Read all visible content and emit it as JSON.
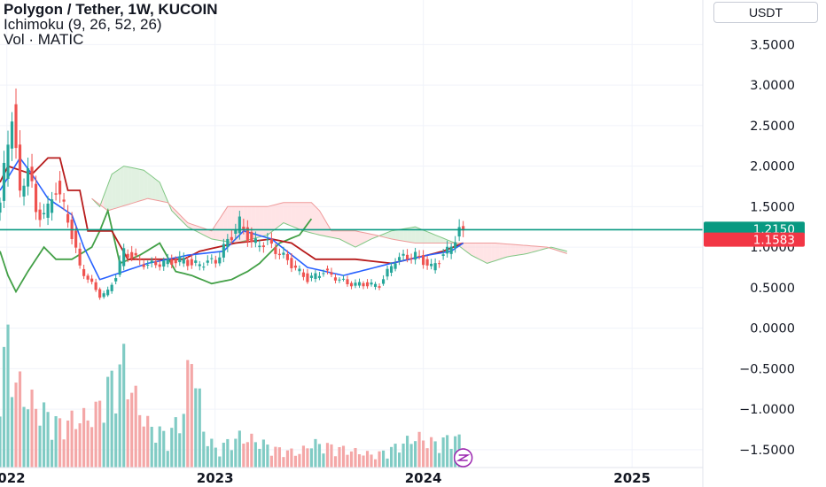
{
  "header": {
    "title": "Polygon / Tether, 1W, KUCOIN",
    "indicator": "Ichimoku (9, 26, 52, 26)",
    "volume_label": "Vol · MATIC",
    "currency": "USDT"
  },
  "colors": {
    "up": "#26a69a",
    "down": "#ef5350",
    "conversion": "#2962ff",
    "base": "#b71c1c",
    "lagging": "#43a047",
    "leading_a": "#81c784",
    "leading_b": "#ef9a9a",
    "cloud_bull": "#c8e6c9",
    "cloud_bear": "#ffcdd2",
    "vol_up": "#80cbc4",
    "vol_down": "#f4a7a7"
  },
  "chart_data": {
    "type": "candlestick",
    "y_axis": {
      "ticks": [
        3.5,
        3.0,
        2.5,
        2.0,
        1.5,
        1.0,
        0.5,
        0.0,
        -0.5,
        -1.0,
        -1.5
      ],
      "tick_labels": [
        "3.5000",
        "3.0000",
        "2.5000",
        "2.0000",
        "1.5000",
        "1.0000",
        "0.5000",
        "0.0000",
        "−0.5000",
        "−1.0000",
        "−1.5000"
      ],
      "range": [
        -1.72,
        4.05
      ]
    },
    "x_axis": {
      "ticks": [
        "2022-01-01",
        "2023-01-01",
        "2024-01-01",
        "2025-01-01"
      ],
      "tick_labels": [
        "2022",
        "2023",
        "2024",
        "2025"
      ],
      "range": [
        "2021-12-20",
        "2025-05-05"
      ]
    },
    "price_labels": [
      {
        "value": 1.215,
        "label": "1.2150",
        "color": "#089981"
      },
      {
        "value": 1.1583,
        "label": "1.1583",
        "color": "#f23645"
      }
    ],
    "anchors": {
      "close": [
        [
          "2021-12-20",
          1.55
        ],
        [
          "2022-01-03",
          2.3
        ],
        [
          "2022-01-10",
          2.7
        ],
        [
          "2022-01-24",
          1.62
        ],
        [
          "2022-02-07",
          2.05
        ],
        [
          "2022-02-21",
          1.4
        ],
        [
          "2022-03-14",
          1.45
        ],
        [
          "2022-03-28",
          1.75
        ],
        [
          "2022-04-18",
          1.35
        ],
        [
          "2022-05-09",
          0.75
        ],
        [
          "2022-06-13",
          0.4
        ],
        [
          "2022-06-27",
          0.45
        ],
        [
          "2022-07-11",
          0.65
        ],
        [
          "2022-07-25",
          0.95
        ],
        [
          "2022-08-15",
          0.85
        ],
        [
          "2022-09-05",
          0.78
        ],
        [
          "2022-10-17",
          0.82
        ],
        [
          "2022-11-07",
          0.85
        ],
        [
          "2022-11-21",
          0.78
        ],
        [
          "2023-01-02",
          0.83
        ],
        [
          "2023-01-30",
          1.15
        ],
        [
          "2023-02-13",
          1.3
        ],
        [
          "2023-03-06",
          1.05
        ],
        [
          "2023-04-03",
          1.05
        ],
        [
          "2023-05-01",
          0.88
        ],
        [
          "2023-06-12",
          0.6
        ],
        [
          "2023-07-10",
          0.7
        ],
        [
          "2023-08-21",
          0.55
        ],
        [
          "2023-10-16",
          0.53
        ],
        [
          "2023-11-13",
          0.85
        ],
        [
          "2023-12-18",
          0.9
        ],
        [
          "2024-01-15",
          0.75
        ],
        [
          "2024-02-12",
          0.95
        ],
        [
          "2024-03-04",
          1.2
        ],
        [
          "2024-03-11",
          1.16
        ]
      ],
      "conversion": [
        [
          "2021-12-20",
          1.7
        ],
        [
          "2022-01-24",
          2.1
        ],
        [
          "2022-02-14",
          1.9
        ],
        [
          "2022-03-14",
          1.6
        ],
        [
          "2022-04-25",
          1.4
        ],
        [
          "2022-05-16",
          1.0
        ],
        [
          "2022-06-13",
          0.6
        ],
        [
          "2022-07-25",
          0.7
        ],
        [
          "2022-09-05",
          0.8
        ],
        [
          "2022-11-14",
          0.9
        ],
        [
          "2023-01-16",
          0.95
        ],
        [
          "2023-02-20",
          1.2
        ],
        [
          "2023-04-10",
          1.1
        ],
        [
          "2023-06-12",
          0.75
        ],
        [
          "2023-08-14",
          0.65
        ],
        [
          "2023-11-06",
          0.8
        ],
        [
          "2024-01-08",
          0.9
        ],
        [
          "2024-02-19",
          0.95
        ],
        [
          "2024-03-11",
          1.05
        ]
      ],
      "base": [
        [
          "2021-12-20",
          1.8
        ],
        [
          "2022-01-03",
          2.0
        ],
        [
          "2022-02-14",
          1.9
        ],
        [
          "2022-03-14",
          2.1
        ],
        [
          "2022-04-04",
          2.1
        ],
        [
          "2022-04-18",
          1.7
        ],
        [
          "2022-05-09",
          1.7
        ],
        [
          "2022-05-23",
          1.2
        ],
        [
          "2022-07-04",
          1.2
        ],
        [
          "2022-08-01",
          0.85
        ],
        [
          "2022-11-07",
          0.85
        ],
        [
          "2022-12-05",
          0.95
        ],
        [
          "2023-02-06",
          1.05
        ],
        [
          "2023-04-10",
          1.1
        ],
        [
          "2023-05-15",
          1.05
        ],
        [
          "2023-06-26",
          0.85
        ],
        [
          "2023-09-04",
          0.85
        ],
        [
          "2023-11-06",
          0.8
        ],
        [
          "2024-01-08",
          0.9
        ],
        [
          "2024-02-05",
          0.95
        ],
        [
          "2024-03-11",
          1.05
        ]
      ],
      "lagging": [
        [
          "2021-12-20",
          0.95
        ],
        [
          "2022-01-03",
          0.65
        ],
        [
          "2022-01-17",
          0.45
        ],
        [
          "2022-02-07",
          0.7
        ],
        [
          "2022-03-07",
          1.0
        ],
        [
          "2022-03-28",
          0.85
        ],
        [
          "2022-04-25",
          0.85
        ],
        [
          "2022-05-30",
          1.0
        ],
        [
          "2022-06-13",
          1.2
        ],
        [
          "2022-06-27",
          1.45
        ],
        [
          "2022-07-18",
          0.8
        ],
        [
          "2022-08-22",
          0.9
        ],
        [
          "2022-09-26",
          1.05
        ],
        [
          "2022-10-24",
          0.7
        ],
        [
          "2022-11-21",
          0.65
        ],
        [
          "2022-12-26",
          0.55
        ],
        [
          "2023-01-30",
          0.6
        ],
        [
          "2023-02-27",
          0.7
        ],
        [
          "2023-03-20",
          0.8
        ],
        [
          "2023-04-24",
          1.05
        ],
        [
          "2023-05-29",
          1.15
        ],
        [
          "2023-06-19",
          1.35
        ]
      ],
      "leading_a": [
        [
          "2022-05-30",
          1.6
        ],
        [
          "2022-06-13",
          1.5
        ],
        [
          "2022-07-04",
          1.9
        ],
        [
          "2022-07-25",
          2.0
        ],
        [
          "2022-08-29",
          1.95
        ],
        [
          "2022-09-26",
          1.8
        ],
        [
          "2022-10-17",
          1.45
        ],
        [
          "2022-11-14",
          1.25
        ],
        [
          "2022-12-26",
          1.1
        ],
        [
          "2023-02-06",
          1.05
        ],
        [
          "2023-03-06",
          1.1
        ],
        [
          "2023-04-03",
          1.15
        ],
        [
          "2023-05-01",
          1.3
        ],
        [
          "2023-06-05",
          1.2
        ],
        [
          "2023-07-03",
          1.15
        ],
        [
          "2023-08-07",
          1.1
        ],
        [
          "2023-09-04",
          1.0
        ],
        [
          "2023-10-02",
          1.1
        ],
        [
          "2023-11-06",
          1.2
        ],
        [
          "2023-12-18",
          1.25
        ],
        [
          "2024-01-22",
          1.15
        ],
        [
          "2024-02-26",
          1.05
        ],
        [
          "2024-03-25",
          0.9
        ],
        [
          "2024-04-22",
          0.8
        ],
        [
          "2024-05-27",
          0.88
        ],
        [
          "2024-07-01",
          0.92
        ],
        [
          "2024-08-12",
          1.0
        ],
        [
          "2024-09-09",
          0.95
        ]
      ],
      "leading_b": [
        [
          "2022-05-30",
          1.6
        ],
        [
          "2022-06-27",
          1.45
        ],
        [
          "2022-09-05",
          1.6
        ],
        [
          "2022-10-10",
          1.55
        ],
        [
          "2022-11-14",
          1.3
        ],
        [
          "2022-12-26",
          1.2
        ],
        [
          "2023-01-23",
          1.5
        ],
        [
          "2023-04-03",
          1.5
        ],
        [
          "2023-05-01",
          1.55
        ],
        [
          "2023-06-19",
          1.55
        ],
        [
          "2023-07-03",
          1.45
        ],
        [
          "2023-07-24",
          1.2
        ],
        [
          "2023-09-04",
          1.2
        ],
        [
          "2023-10-09",
          1.15
        ],
        [
          "2023-11-06",
          1.1
        ],
        [
          "2023-12-18",
          1.05
        ],
        [
          "2024-02-05",
          1.05
        ],
        [
          "2024-03-18",
          1.05
        ],
        [
          "2024-05-06",
          1.05
        ],
        [
          "2024-08-05",
          1.0
        ],
        [
          "2024-09-09",
          0.92
        ]
      ],
      "volume": [
        [
          "2021-12-20",
          80
        ],
        [
          "2022-01-03",
          100
        ],
        [
          "2022-01-17",
          70
        ],
        [
          "2022-02-07",
          55
        ],
        [
          "2022-03-07",
          45
        ],
        [
          "2022-04-04",
          35
        ],
        [
          "2022-05-02",
          40
        ],
        [
          "2022-05-16",
          40
        ],
        [
          "2022-06-06",
          45
        ],
        [
          "2022-06-20",
          60
        ],
        [
          "2022-07-11",
          75
        ],
        [
          "2022-07-25",
          85
        ],
        [
          "2022-08-15",
          55
        ],
        [
          "2022-09-05",
          35
        ],
        [
          "2022-10-10",
          25
        ],
        [
          "2022-11-07",
          45
        ],
        [
          "2022-11-21",
          100
        ],
        [
          "2022-12-12",
          30
        ],
        [
          "2023-01-02",
          15
        ],
        [
          "2023-02-13",
          25
        ],
        [
          "2023-03-13",
          22
        ],
        [
          "2023-04-17",
          15
        ],
        [
          "2023-05-29",
          12
        ],
        [
          "2023-06-19",
          20
        ],
        [
          "2023-08-14",
          15
        ],
        [
          "2023-10-09",
          10
        ],
        [
          "2023-11-20",
          18
        ],
        [
          "2023-12-18",
          25
        ],
        [
          "2024-01-22",
          20
        ],
        [
          "2024-02-26",
          25
        ],
        [
          "2024-03-11",
          20
        ]
      ]
    }
  }
}
